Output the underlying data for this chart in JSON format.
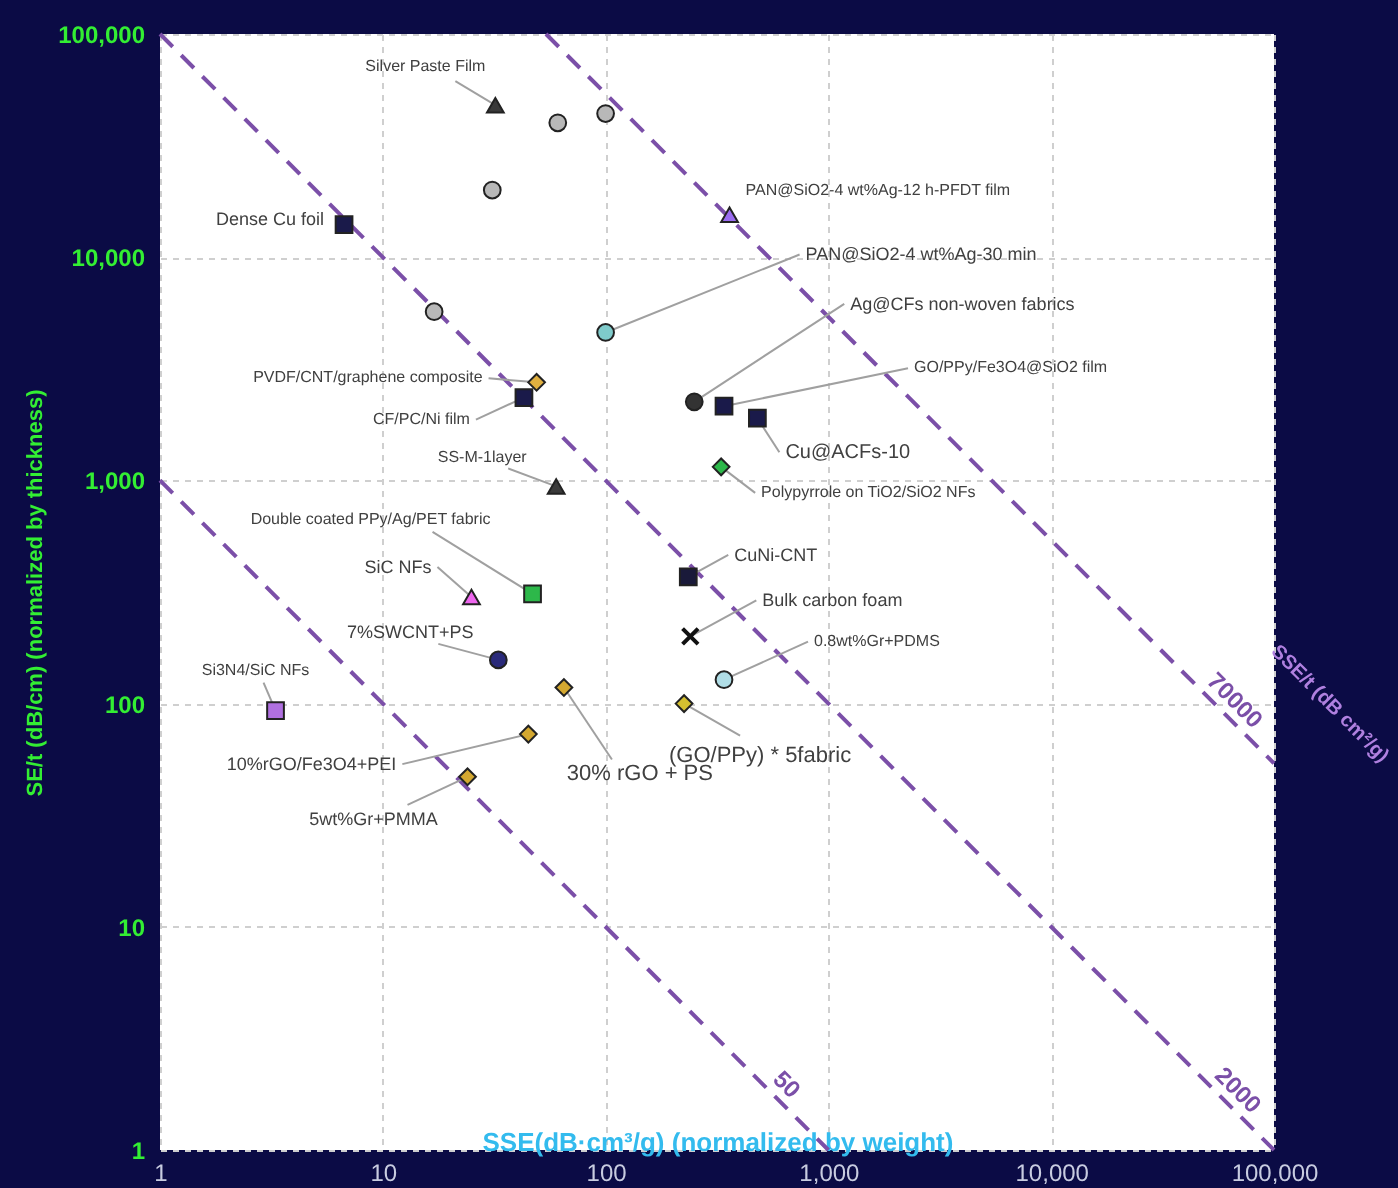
{
  "chart_data": {
    "type": "scatter",
    "xlabel": "SSE(dB·cm³/g)  (normalized by weight)",
    "ylabel": "SE/t (dB/cm)  (normalized by thickness)",
    "annotations": [
      "SSE/t (dB cm²/g)"
    ],
    "log": "xy",
    "grid": true,
    "xlim": [
      1,
      100000
    ],
    "ylim": [
      1,
      100000
    ],
    "xticks": [
      1,
      10,
      100,
      {
        "value": 1000,
        "label": "1,000"
      },
      {
        "value": 10000,
        "label": "10,000"
      },
      {
        "value": 100000,
        "label": "100,000"
      }
    ],
    "yticks": [
      1,
      10,
      100,
      {
        "value": 1000,
        "label": "1,000"
      },
      {
        "value": 10000,
        "label": "10,000"
      },
      {
        "value": 100000,
        "label": "100,000"
      }
    ],
    "series": [
      {
        "color": "#b8b8b8",
        "marker": "circle",
        "x": [
          31,
          61,
          100,
          17
        ],
        "values": [
          20000,
          40000,
          44000,
          5700
        ]
      },
      {
        "name": "Silver Paste Film",
        "color": "#3a3a3a",
        "marker": "triangle",
        "x": [
          32
        ],
        "values": [
          48000
        ]
      },
      {
        "name": "Dense Cu foil",
        "color": "#1a1a4a",
        "marker": "square",
        "x": [
          6.7
        ],
        "values": [
          14000
        ]
      },
      {
        "name": "PAN@SiO2-4 wt%Ag-12 h-PFDT film",
        "color": "#9b6cf0",
        "marker": "triangle",
        "x": [
          360
        ],
        "values": [
          15500
        ]
      },
      {
        "name": "PAN@SiO2-4 wt%Ag-30 min",
        "color": "#7fcbcb",
        "marker": "circle",
        "x": [
          100
        ],
        "values": [
          4600
        ]
      },
      {
        "name": "Ag@CFs non-woven fabrics",
        "color": "#333333",
        "marker": "circle",
        "x": [
          250
        ],
        "values": [
          2250
        ]
      },
      {
        "name": "GO/PPy/Fe3O4@SiO2 film",
        "color": "#1a1a4a",
        "marker": "square",
        "x": [
          340
        ],
        "values": [
          2150
        ]
      },
      {
        "name": "Cu@ACFs-10",
        "color": "#1a1a4a",
        "marker": "square",
        "x": [
          480
        ],
        "values": [
          1900
        ]
      },
      {
        "name": "Polypyrrole on TiO2/SiO2 NFs",
        "color": "#2db84a",
        "marker": "diamond",
        "x": [
          330
        ],
        "values": [
          1150
        ]
      },
      {
        "name": "PVDF/CNT/graphene composite",
        "color": "#e0b040",
        "marker": "diamond",
        "x": [
          49
        ],
        "values": [
          2750
        ]
      },
      {
        "name": "CF/PC/Ni film",
        "color": "#1a1a4a",
        "marker": "square",
        "x": [
          43
        ],
        "values": [
          2350
        ]
      },
      {
        "name": "SS-M-1layer",
        "color": "#3a3a3a",
        "marker": "triangle",
        "x": [
          60
        ],
        "values": [
          940
        ]
      },
      {
        "name": "CuNi-CNT",
        "color": "#1a1a3a",
        "marker": "square",
        "x": [
          235
        ],
        "values": [
          370
        ]
      },
      {
        "name": "Double coated PPy/Ag/PET fabric",
        "color": "#2db84a",
        "marker": "square",
        "x": [
          47
        ],
        "values": [
          310
        ]
      },
      {
        "name": "SiC NFs",
        "color": "#ee66ee",
        "marker": "triangle",
        "x": [
          25
        ],
        "values": [
          300
        ]
      },
      {
        "name": "Bulk carbon foam",
        "color": "#111111",
        "marker": "cross",
        "x": [
          240
        ],
        "values": [
          200
        ]
      },
      {
        "name": "0.8wt%Gr+PDMS",
        "color": "#b0dde6",
        "marker": "circle",
        "x": [
          340
        ],
        "values": [
          128
        ]
      },
      {
        "name": "7%SWCNT+PS",
        "color": "#2a2a7a",
        "marker": "circle",
        "x": [
          33
        ],
        "values": [
          157
        ]
      },
      {
        "name": "Si3N4/SiC NFs",
        "color": "#b070e0",
        "marker": "square",
        "x": [
          3.3
        ],
        "values": [
          93
        ]
      },
      {
        "name": "30% rGO + PS",
        "color": "#d4a830",
        "marker": "diamond",
        "x": [
          65
        ],
        "values": [
          118
        ]
      },
      {
        "name": "(GO/PPy) * 5fabric",
        "color": "#d4c030",
        "marker": "diamond",
        "x": [
          225
        ],
        "values": [
          100
        ]
      },
      {
        "name": "10%rGO/Fe3O4+PEI",
        "color": "#d4a830",
        "marker": "diamond",
        "x": [
          45
        ],
        "values": [
          73
        ]
      },
      {
        "name": "5wt%Gr+PMMA",
        "color": "#d4a830",
        "marker": "diamond",
        "x": [
          24
        ],
        "values": [
          47
        ]
      },
      {
        "name": "50",
        "type": "line",
        "line_style": "dashed",
        "color": "#7b4fa8",
        "marker": "none",
        "x": [
          1,
          1000
        ],
        "values": [
          1000,
          1
        ]
      },
      {
        "name": "2000",
        "type": "line",
        "line_style": "dashed",
        "color": "#7b4fa8",
        "marker": "none",
        "x": [
          1,
          100000
        ],
        "values": [
          100000,
          1
        ]
      },
      {
        "name": "70000",
        "type": "line",
        "line_style": "dashed",
        "color": "#7b4fa8",
        "marker": "none",
        "x": [
          54,
          100000
        ],
        "values": [
          100000,
          54
        ]
      }
    ]
  }
}
